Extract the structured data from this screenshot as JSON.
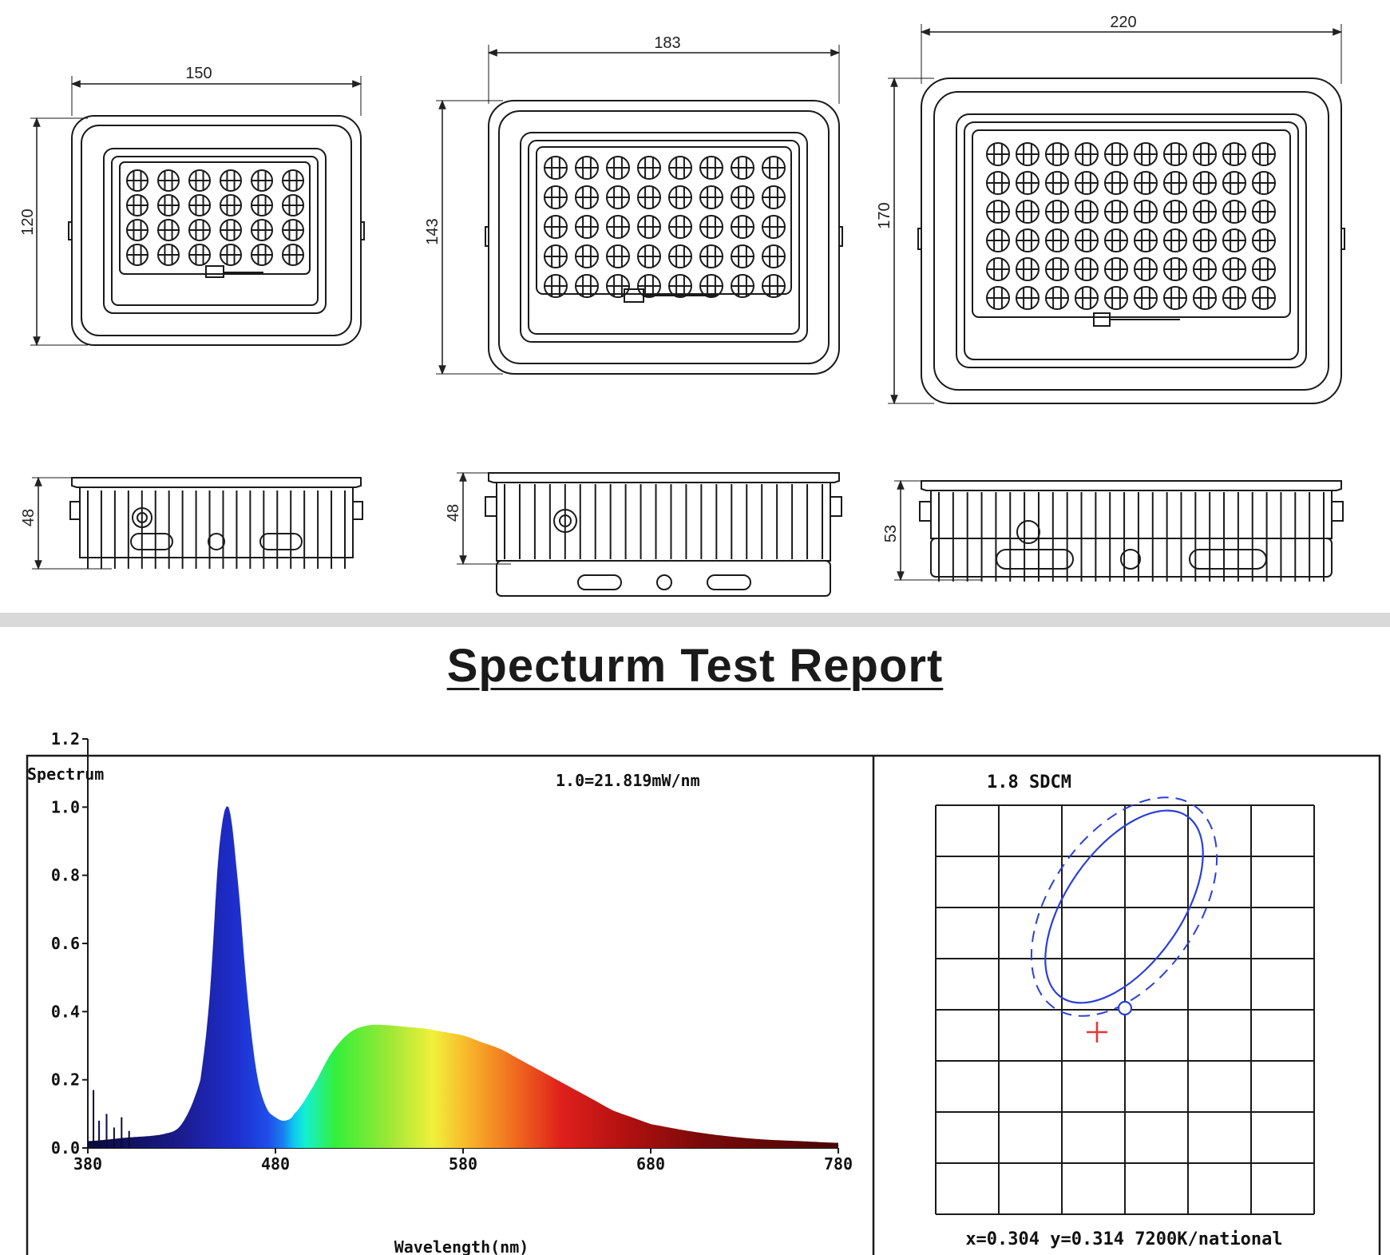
{
  "dimensions": {
    "small": {
      "width": "150",
      "height": "120",
      "depth": "48"
    },
    "medium": {
      "width": "183",
      "height": "143",
      "depth": "48"
    },
    "large": {
      "width": "220",
      "height": "170",
      "depth": "53"
    }
  },
  "report": {
    "title": "Specturm Test Report"
  },
  "chart_data": [
    {
      "type": "area",
      "ylabel": "Spectrum",
      "xlabel": "Wavelength(nm)",
      "annotation": "1.0=21.819mW/nm",
      "xlim": [
        380,
        780
      ],
      "ylim": [
        0,
        1.2
      ],
      "x_ticks": [
        "380",
        "480",
        "580",
        "680",
        "780"
      ],
      "y_ticks": [
        "0.0",
        "0.2",
        "0.4",
        "0.6",
        "0.8",
        "1.0",
        "1.2"
      ],
      "x": [
        380,
        400,
        420,
        430,
        440,
        445,
        450,
        455,
        460,
        465,
        470,
        475,
        480,
        485,
        490,
        500,
        510,
        520,
        530,
        540,
        550,
        560,
        570,
        580,
        590,
        600,
        610,
        620,
        630,
        640,
        650,
        660,
        670,
        680,
        700,
        720,
        740,
        760,
        780
      ],
      "values": [
        0.02,
        0.03,
        0.04,
        0.07,
        0.2,
        0.45,
        0.88,
        1.0,
        0.78,
        0.45,
        0.22,
        0.12,
        0.09,
        0.08,
        0.1,
        0.18,
        0.28,
        0.34,
        0.36,
        0.36,
        0.355,
        0.35,
        0.34,
        0.33,
        0.31,
        0.29,
        0.26,
        0.23,
        0.2,
        0.17,
        0.14,
        0.11,
        0.09,
        0.07,
        0.05,
        0.035,
        0.025,
        0.02,
        0.015
      ]
    },
    {
      "type": "scatter",
      "title": "1.8 SDCM",
      "caption": "x=0.304 y=0.314 7200K/national",
      "grid": true,
      "legend": "none"
    }
  ],
  "colors": {
    "line": "#1a1a1a",
    "ellipse": "#2b3fd9",
    "marker": "#e53935",
    "divider": "#d9d9d9"
  }
}
